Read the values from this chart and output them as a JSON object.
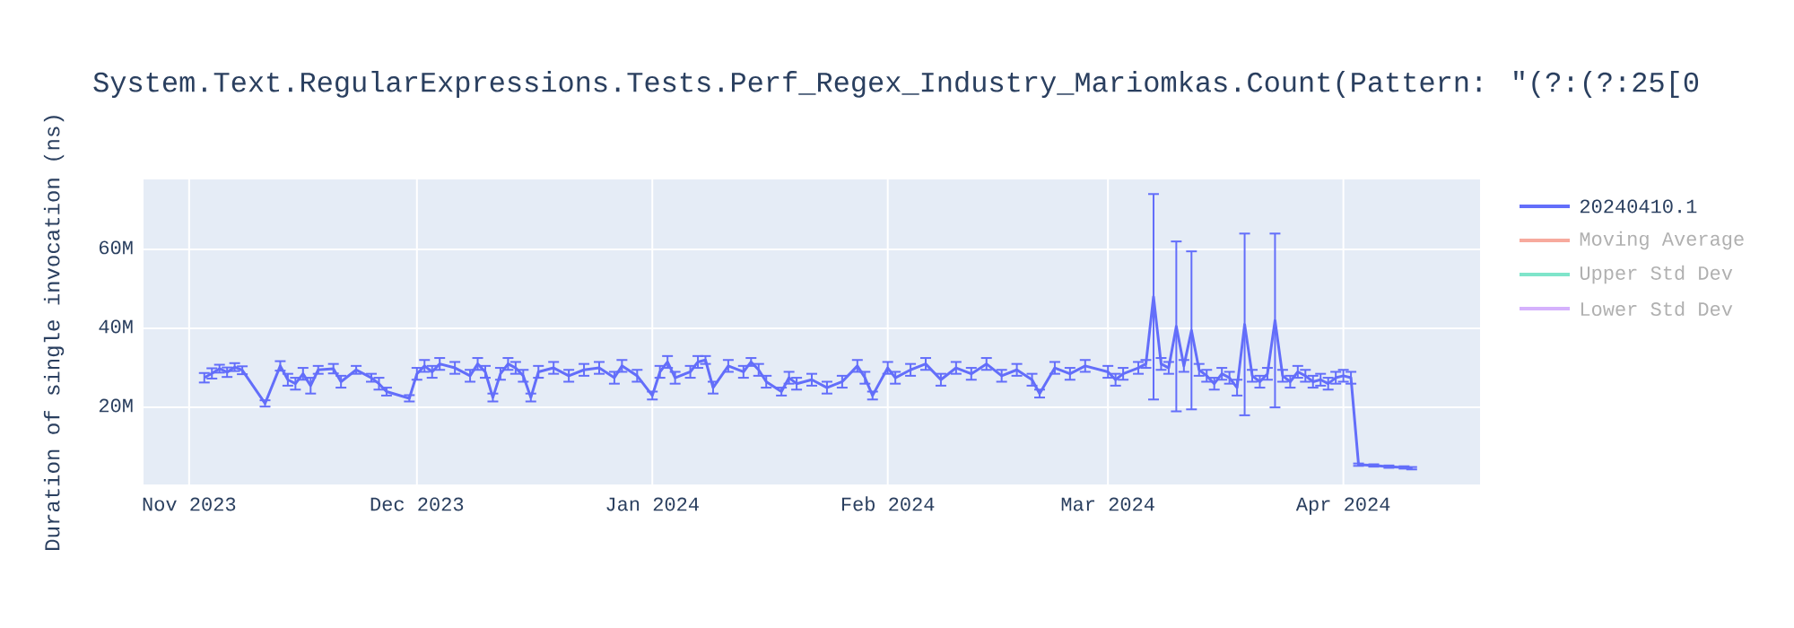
{
  "chart_data": {
    "type": "line",
    "title": "System.Text.RegularExpressions.Tests.Perf_Regex_Industry_Mariomkas.Count(Pattern: \"(?:(?:25[0",
    "ylabel": "Duration of single invocation (ns)",
    "x": [
      "2023-11-03",
      "2023-11-04",
      "2023-11-05",
      "2023-11-06",
      "2023-11-07",
      "2023-11-08",
      "2023-11-11",
      "2023-11-13",
      "2023-11-14",
      "2023-11-15",
      "2023-11-16",
      "2023-11-17",
      "2023-11-18",
      "2023-11-20",
      "2023-11-21",
      "2023-11-23",
      "2023-11-25",
      "2023-11-26",
      "2023-11-27",
      "2023-11-30",
      "2023-12-01",
      "2023-12-02",
      "2023-12-03",
      "2023-12-04",
      "2023-12-06",
      "2023-12-08",
      "2023-12-09",
      "2023-12-10",
      "2023-12-11",
      "2023-12-12",
      "2023-12-13",
      "2023-12-14",
      "2023-12-15",
      "2023-12-16",
      "2023-12-17",
      "2023-12-19",
      "2023-12-21",
      "2023-12-23",
      "2023-12-25",
      "2023-12-27",
      "2023-12-28",
      "2023-12-30",
      "2024-01-01",
      "2024-01-02",
      "2024-01-03",
      "2024-01-04",
      "2024-01-06",
      "2024-01-07",
      "2024-01-08",
      "2024-01-09",
      "2024-01-11",
      "2024-01-13",
      "2024-01-14",
      "2024-01-15",
      "2024-01-16",
      "2024-01-18",
      "2024-01-19",
      "2024-01-20",
      "2024-01-22",
      "2024-01-24",
      "2024-01-26",
      "2024-01-28",
      "2024-01-29",
      "2024-01-30",
      "2024-02-01",
      "2024-02-02",
      "2024-02-04",
      "2024-02-06",
      "2024-02-08",
      "2024-02-10",
      "2024-02-12",
      "2024-02-14",
      "2024-02-16",
      "2024-02-18",
      "2024-02-20",
      "2024-02-21",
      "2024-02-23",
      "2024-02-25",
      "2024-02-27",
      "2024-03-01",
      "2024-03-02",
      "2024-03-03",
      "2024-03-05",
      "2024-03-06",
      "2024-03-07",
      "2024-03-08",
      "2024-03-09",
      "2024-03-10",
      "2024-03-11",
      "2024-03-12",
      "2024-03-13",
      "2024-03-14",
      "2024-03-15",
      "2024-03-16",
      "2024-03-17",
      "2024-03-18",
      "2024-03-19",
      "2024-03-20",
      "2024-03-21",
      "2024-03-22",
      "2024-03-23",
      "2024-03-24",
      "2024-03-25",
      "2024-03-26",
      "2024-03-27",
      "2024-03-28",
      "2024-03-29",
      "2024-03-30",
      "2024-03-31",
      "2024-04-01",
      "2024-04-02",
      "2024-04-03",
      "2024-04-05",
      "2024-04-07",
      "2024-04-09",
      "2024-04-10"
    ],
    "series": [
      {
        "name": "20240410.1",
        "color": "#636efa",
        "values": [
          27500000,
          28600000,
          29800000,
          28900000,
          30200000,
          29400000,
          21000000,
          30500000,
          27000000,
          26000000,
          28500000,
          25500000,
          29500000,
          29800000,
          26500000,
          29500000,
          27500000,
          26000000,
          24000000,
          22300000,
          28500000,
          30500000,
          29000000,
          31000000,
          30000000,
          28000000,
          31000000,
          29000000,
          22500000,
          28500000,
          31000000,
          30000000,
          28000000,
          22500000,
          29000000,
          30000000,
          28000000,
          29500000,
          30000000,
          27500000,
          30500000,
          28000000,
          23000000,
          29000000,
          31500000,
          27500000,
          29000000,
          31500000,
          32000000,
          25000000,
          30500000,
          29000000,
          31500000,
          29500000,
          26500000,
          24000000,
          27500000,
          26000000,
          27000000,
          25000000,
          26500000,
          30500000,
          27500000,
          23000000,
          30000000,
          27500000,
          29500000,
          31000000,
          27000000,
          30000000,
          28500000,
          31000000,
          28000000,
          29500000,
          27000000,
          23500000,
          30000000,
          28500000,
          30500000,
          29000000,
          27000000,
          28500000,
          30000000,
          31000000,
          48000000,
          31000000,
          30000000,
          40500000,
          30500000,
          39500000,
          29500000,
          28000000,
          26000000,
          28500000,
          27500000,
          25000000,
          41000000,
          28000000,
          26500000,
          28500000,
          42000000,
          28000000,
          26500000,
          29000000,
          28000000,
          26500000,
          27000000,
          26000000,
          27500000,
          28000000,
          27500000,
          5500000,
          5300000,
          5000000,
          4800000,
          4600000
        ],
        "errors": [
          1200000,
          1300000,
          1000000,
          1200000,
          1000000,
          1000000,
          800000,
          1200000,
          1500000,
          1500000,
          1500000,
          2000000,
          1000000,
          1200000,
          1500000,
          1000000,
          1000000,
          1500000,
          1000000,
          800000,
          1500000,
          1500000,
          1500000,
          1500000,
          1500000,
          1500000,
          1500000,
          1500000,
          1000000,
          1500000,
          1500000,
          1500000,
          1500000,
          1000000,
          1500000,
          1500000,
          1500000,
          1500000,
          1500000,
          1500000,
          1500000,
          1500000,
          1000000,
          1500000,
          1500000,
          1500000,
          1500000,
          1500000,
          1000000,
          1500000,
          1500000,
          1500000,
          1000000,
          1500000,
          1500000,
          1000000,
          1500000,
          1500000,
          1500000,
          1500000,
          1500000,
          1500000,
          1500000,
          1000000,
          1500000,
          1500000,
          1500000,
          1500000,
          1500000,
          1500000,
          1500000,
          1500000,
          1500000,
          1500000,
          1500000,
          1000000,
          1500000,
          1500000,
          1500000,
          1500000,
          1500000,
          1500000,
          1500000,
          1000000,
          26000000,
          1500000,
          1500000,
          21500000,
          1500000,
          20000000,
          1500000,
          1500000,
          1500000,
          1500000,
          1500000,
          2000000,
          23000000,
          1500000,
          1500000,
          1500000,
          22000000,
          1500000,
          1500000,
          1500000,
          1500000,
          1500000,
          1500000,
          1500000,
          1500000,
          1500000,
          1500000,
          300000,
          300000,
          300000,
          300000,
          300000
        ]
      },
      {
        "name": "Moving Average",
        "color": "#f7aa9d",
        "values": [
          null,
          null,
          null,
          null,
          null,
          null,
          null,
          null,
          null,
          null,
          null,
          null,
          null,
          null,
          null,
          null,
          null,
          null,
          null,
          null,
          null,
          null,
          null,
          null,
          null,
          null,
          null,
          null,
          null,
          null,
          null,
          null,
          null,
          null,
          null,
          null,
          null,
          null,
          null,
          null,
          null,
          null,
          null,
          null,
          null,
          null,
          null,
          null,
          null,
          null,
          null,
          null,
          null,
          null,
          null,
          null,
          null,
          null,
          null,
          null,
          null,
          null,
          null,
          null,
          null,
          null,
          null,
          null,
          null,
          null,
          null,
          null,
          null,
          null,
          null,
          null,
          null,
          null,
          null,
          null,
          null,
          null,
          null,
          null,
          null,
          null,
          null,
          null,
          null,
          null,
          null,
          null,
          null,
          null,
          null,
          null,
          null,
          null,
          null,
          null,
          null,
          null,
          null,
          null,
          null,
          null,
          null,
          null,
          null,
          null,
          null,
          null,
          null,
          null,
          null,
          null
        ]
      },
      {
        "name": "Upper Std Dev",
        "color": "#7fe5ca",
        "values": [
          null,
          null,
          null,
          null,
          null,
          null,
          null,
          null,
          null,
          null,
          null,
          null,
          null,
          null,
          null,
          null,
          null,
          null,
          null,
          null,
          null,
          null,
          null,
          null,
          null,
          null,
          null,
          null,
          null,
          null,
          null,
          null,
          null,
          null,
          null,
          null,
          null,
          null,
          null,
          null,
          null,
          null,
          null,
          null,
          null,
          null,
          null,
          null,
          null,
          null,
          null,
          null,
          null,
          null,
          null,
          null,
          null,
          null,
          null,
          null,
          null,
          null,
          null,
          null,
          null,
          null,
          null,
          null,
          null,
          null,
          null,
          null,
          null,
          null,
          null,
          null,
          null,
          null,
          null,
          null,
          null,
          null,
          null,
          null,
          null,
          null,
          null,
          null,
          null,
          null,
          null,
          null,
          null,
          null,
          null,
          null,
          null,
          null,
          null,
          null,
          null,
          null,
          null,
          null,
          null,
          null,
          null,
          null,
          null,
          null,
          null,
          null,
          null,
          null,
          null,
          null
        ]
      },
      {
        "name": "Lower Std Dev",
        "color": "#d5b1fc",
        "values": [
          null,
          null,
          null,
          null,
          null,
          null,
          null,
          null,
          null,
          null,
          null,
          null,
          null,
          null,
          null,
          null,
          null,
          null,
          null,
          null,
          null,
          null,
          null,
          null,
          null,
          null,
          null,
          null,
          null,
          null,
          null,
          null,
          null,
          null,
          null,
          null,
          null,
          null,
          null,
          null,
          null,
          null,
          null,
          null,
          null,
          null,
          null,
          null,
          null,
          null,
          null,
          null,
          null,
          null,
          null,
          null,
          null,
          null,
          null,
          null,
          null,
          null,
          null,
          null,
          null,
          null,
          null,
          null,
          null,
          null,
          null,
          null,
          null,
          null,
          null,
          null,
          null,
          null,
          null,
          null,
          null,
          null,
          null,
          null,
          null,
          null,
          null,
          null,
          null,
          null,
          null,
          null,
          null,
          null,
          null,
          null,
          null,
          null,
          null,
          null,
          null,
          null,
          null,
          null,
          null,
          null,
          null,
          null,
          null,
          null,
          null,
          null,
          null,
          null,
          null,
          null
        ]
      }
    ],
    "xlim": [
      "2023-10-26",
      "2024-04-19"
    ],
    "xticks": [
      {
        "value": "2023-11-01",
        "label": "Nov 2023"
      },
      {
        "value": "2023-12-01",
        "label": "Dec 2023"
      },
      {
        "value": "2024-01-01",
        "label": "Jan 2024"
      },
      {
        "value": "2024-02-01",
        "label": "Feb 2024"
      },
      {
        "value": "2024-03-01",
        "label": "Mar 2024"
      },
      {
        "value": "2024-04-01",
        "label": "Apr 2024"
      }
    ],
    "ylim": [
      500000,
      77700000
    ],
    "yticks": [
      {
        "value": 20000000,
        "label": "20M"
      },
      {
        "value": 40000000,
        "label": "40M"
      },
      {
        "value": 60000000,
        "label": "60M"
      }
    ],
    "grid": true,
    "legend": "top right"
  }
}
